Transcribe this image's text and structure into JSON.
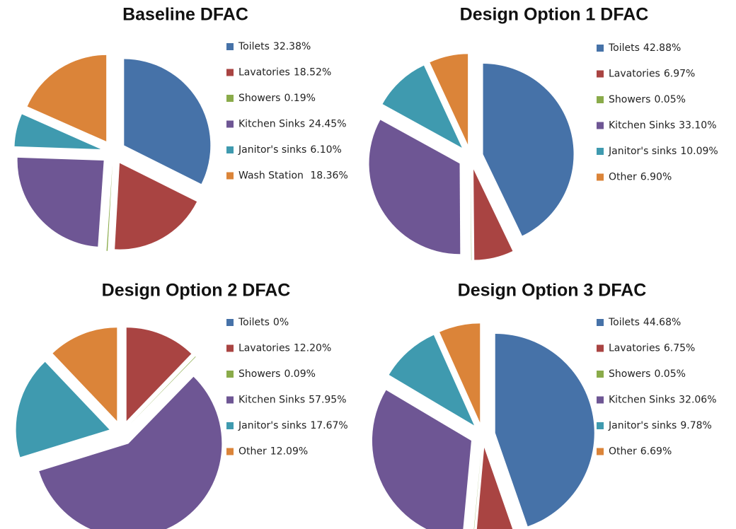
{
  "chart_data": [
    {
      "type": "pie",
      "title": "Baseline DFAC",
      "categories": [
        "Toilets",
        "Lavatories",
        "Showers",
        "Kitchen Sinks",
        "Janitor's sinks",
        "Wash Station "
      ],
      "values": [
        32.38,
        18.52,
        0.19,
        24.45,
        6.1,
        18.36
      ],
      "value_labels": [
        "32.38%",
        "18.52%",
        "0.19%",
        "24.45%",
        "6.10%",
        "18.36%"
      ],
      "colors": [
        "#4672a8",
        "#a94442",
        "#8aab4a",
        "#6e5694",
        "#3f9aaf",
        "#db8439"
      ]
    },
    {
      "type": "pie",
      "title": "Design Option 1 DFAC",
      "categories": [
        "Toilets",
        "Lavatories",
        "Showers",
        "Kitchen Sinks",
        "Janitor's sinks",
        "Other"
      ],
      "values": [
        42.88,
        6.97,
        0.05,
        33.1,
        10.09,
        6.9
      ],
      "value_labels": [
        "42.88%",
        "6.97%",
        "0.05%",
        "33.10%",
        "10.09%",
        "6.90%"
      ],
      "colors": [
        "#4672a8",
        "#a94442",
        "#8aab4a",
        "#6e5694",
        "#3f9aaf",
        "#db8439"
      ]
    },
    {
      "type": "pie",
      "title": "Design Option 2 DFAC",
      "categories": [
        "Toilets",
        "Lavatories",
        "Showers",
        "Kitchen Sinks",
        "Janitor's sinks",
        "Other"
      ],
      "values": [
        0,
        12.2,
        0.09,
        57.95,
        17.67,
        12.09
      ],
      "value_labels": [
        "0%",
        "12.20%",
        "0.09%",
        "57.95%",
        "17.67%",
        "12.09%"
      ],
      "colors": [
        "#4672a8",
        "#a94442",
        "#8aab4a",
        "#6e5694",
        "#3f9aaf",
        "#db8439"
      ]
    },
    {
      "type": "pie",
      "title": "Design Option 3 DFAC",
      "categories": [
        "Toilets",
        "Lavatories",
        "Showers",
        "Kitchen Sinks",
        "Janitor's sinks",
        "Other"
      ],
      "values": [
        44.68,
        6.75,
        0.05,
        32.06,
        9.78,
        6.69
      ],
      "value_labels": [
        "44.68%",
        "6.75%",
        "0.05%",
        "32.06%",
        "9.78%",
        "6.69%"
      ],
      "colors": [
        "#4672a8",
        "#a94442",
        "#8aab4a",
        "#6e5694",
        "#3f9aaf",
        "#db8439"
      ]
    }
  ]
}
